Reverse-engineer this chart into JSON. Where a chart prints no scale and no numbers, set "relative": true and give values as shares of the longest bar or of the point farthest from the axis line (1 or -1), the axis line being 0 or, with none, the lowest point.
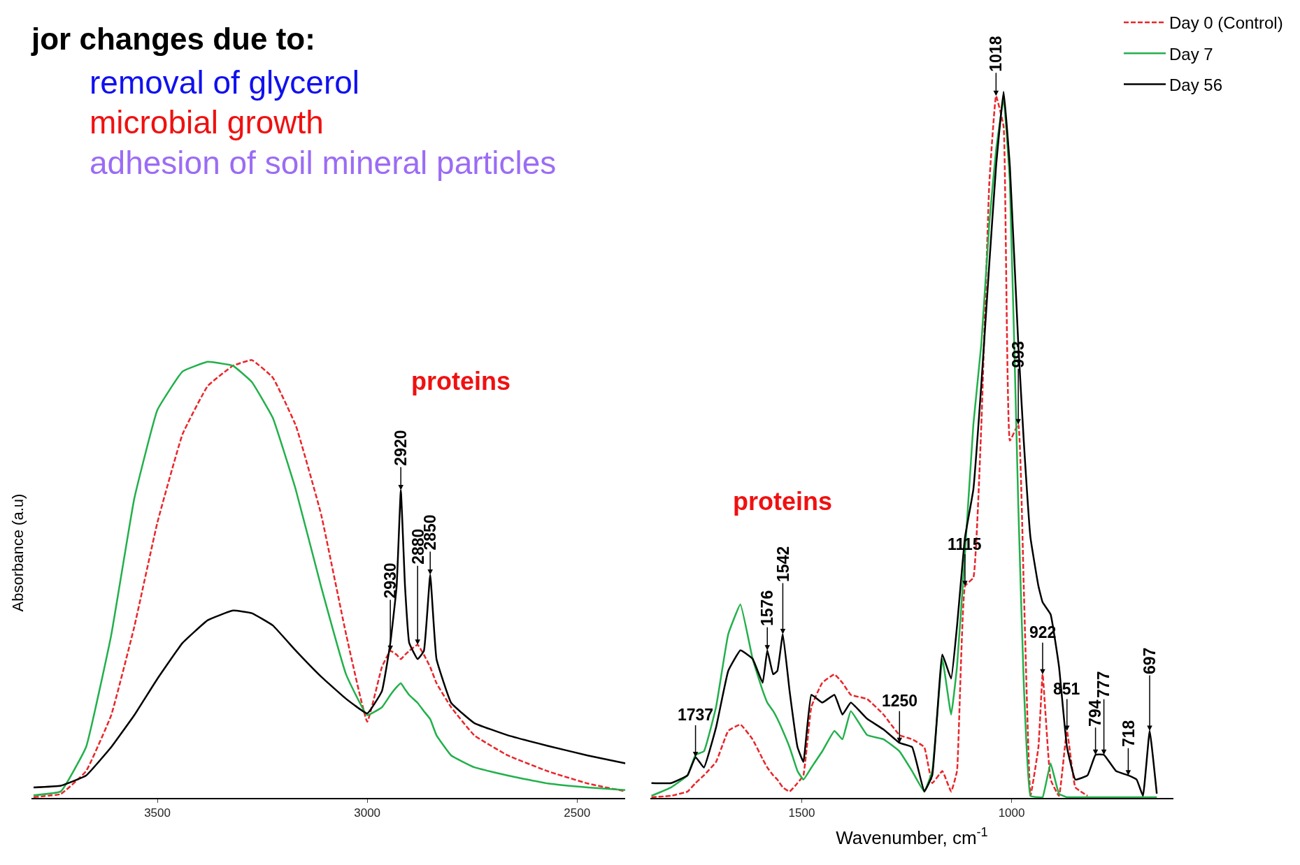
{
  "chart_data": [
    {
      "type": "line",
      "title": "jor changes due to:",
      "ylabel": "Absorbance (a.u)",
      "relative": true,
      "marker": "none",
      "xlim": [
        3800,
        2385
      ],
      "xticks": [
        3500,
        3000,
        2500
      ],
      "x": [
        3795,
        3730,
        3670,
        3610,
        3555,
        3500,
        3440,
        3380,
        3320,
        3275,
        3225,
        3170,
        3110,
        3050,
        3000,
        2965,
        2945,
        2930,
        2920,
        2910,
        2900,
        2880,
        2865,
        2850,
        2835,
        2800,
        2745,
        2665,
        2570,
        2475,
        2385
      ],
      "series": [
        {
          "color": "#e8262a",
          "line_style": "dashed",
          "values": [
            0.002,
            0.009,
            0.061,
            0.189,
            0.391,
            0.629,
            0.831,
            0.941,
            0.987,
            1.0,
            0.96,
            0.85,
            0.648,
            0.372,
            0.174,
            0.299,
            0.336,
            0.327,
            0.317,
            0.327,
            0.336,
            0.35,
            0.327,
            0.299,
            0.262,
            0.207,
            0.143,
            0.097,
            0.061,
            0.033,
            0.015
          ]
        },
        {
          "color": "#22b04b",
          "line_style": "solid",
          "values": [
            0.006,
            0.015,
            0.116,
            0.372,
            0.684,
            0.886,
            0.974,
            0.996,
            0.987,
            0.95,
            0.868,
            0.703,
            0.483,
            0.281,
            0.189,
            0.207,
            0.235,
            0.253,
            0.262,
            0.248,
            0.235,
            0.217,
            0.198,
            0.18,
            0.143,
            0.097,
            0.07,
            0.051,
            0.033,
            0.024,
            0.018
          ]
        },
        {
          "color": "#000000",
          "line_style": "solid",
          "values": [
            0.024,
            0.028,
            0.051,
            0.116,
            0.189,
            0.272,
            0.354,
            0.406,
            0.428,
            0.422,
            0.394,
            0.336,
            0.277,
            0.226,
            0.193,
            0.244,
            0.354,
            0.483,
            0.703,
            0.483,
            0.354,
            0.317,
            0.336,
            0.51,
            0.317,
            0.217,
            0.171,
            0.143,
            0.119,
            0.097,
            0.079
          ]
        }
      ],
      "annotations": [
        "removal of glycerol",
        "microbial growth",
        "adhesion of soil mineral particles",
        "proteins",
        {
          "text": "2920",
          "x": 2920,
          "y": 0.703
        },
        {
          "text": "2850",
          "x": 2850,
          "y": 0.51
        },
        {
          "text": "2930",
          "x": 2945,
          "y": 0.336
        },
        {
          "text": "2880",
          "x": 2880,
          "y": 0.35
        }
      ]
    },
    {
      "type": "line",
      "xlabel": "Wavenumber, cm$^{-1}$",
      "relative": true,
      "legend": "top right",
      "marker": "none",
      "xlim": [
        1860,
        615
      ],
      "xticks": [
        1500,
        1000
      ],
      "x": [
        1858,
        1811,
        1772,
        1753,
        1733,
        1704,
        1675,
        1646,
        1617,
        1593,
        1582,
        1568,
        1558,
        1545,
        1529,
        1510,
        1496,
        1477,
        1451,
        1422,
        1403,
        1383,
        1344,
        1305,
        1267,
        1237,
        1208,
        1189,
        1165,
        1144,
        1130,
        1111,
        1091,
        1072,
        1053,
        1037,
        1019,
        1004,
        984,
        971,
        955,
        936,
        926,
        907,
        887,
        868,
        848,
        819,
        800,
        780,
        751,
        722,
        702,
        687,
        671,
        654
      ],
      "series": [
        {
          "name": "Day 0 (Control)",
          "color": "#e8262a",
          "line_style": "dashed",
          "values": [
            0.001,
            0.003,
            0.009,
            0.021,
            0.032,
            0.051,
            0.095,
            0.104,
            0.083,
            0.055,
            0.043,
            0.032,
            0.026,
            0.015,
            0.009,
            0.021,
            0.032,
            0.129,
            0.163,
            0.175,
            0.163,
            0.146,
            0.14,
            0.118,
            0.089,
            0.083,
            0.072,
            0.021,
            0.038,
            0.009,
            0.038,
            0.3,
            0.312,
            0.529,
            0.871,
            0.994,
            0.951,
            0.506,
            0.529,
            0.3,
            0.003,
            0.072,
            0.175,
            0.026,
            0.003,
            0.095,
            0.015,
            0.003,
            null,
            null,
            null,
            null,
            null,
            null,
            null,
            null
          ]
        },
        {
          "name": "Day 7",
          "color": "#22b04b",
          "line_style": "solid",
          "values": [
            0.003,
            0.015,
            0.032,
            0.061,
            0.066,
            0.129,
            0.232,
            0.274,
            0.197,
            0.152,
            0.135,
            0.123,
            0.112,
            0.095,
            0.072,
            0.038,
            0.026,
            0.043,
            0.066,
            0.095,
            0.083,
            0.123,
            0.089,
            0.083,
            0.066,
            0.038,
            0.009,
            0.038,
            0.197,
            0.118,
            0.186,
            0.346,
            0.529,
            0.643,
            0.814,
            0.917,
            0.99,
            0.871,
            0.414,
            0.163,
            0.003,
            0.001,
            0.001,
            0.049,
            0.006,
            0.001,
            0.001,
            0.001,
            0.001,
            0.001,
            0.001,
            0.001,
            0.001,
            0.001,
            0.001,
            0.001
          ]
        },
        {
          "name": "Day 56",
          "color": "#000000",
          "line_style": "solid",
          "values": [
            0.021,
            0.021,
            0.032,
            0.058,
            0.043,
            0.1,
            0.18,
            0.209,
            0.197,
            0.163,
            0.209,
            0.175,
            0.18,
            0.232,
            0.152,
            0.072,
            0.051,
            0.146,
            0.135,
            0.146,
            0.118,
            0.135,
            0.112,
            0.097,
            0.078,
            0.072,
            0.009,
            0.032,
            0.203,
            0.169,
            0.243,
            0.369,
            0.437,
            0.586,
            0.757,
            0.894,
            1.0,
            0.894,
            0.643,
            0.506,
            0.369,
            0.3,
            0.277,
            0.26,
            0.186,
            0.072,
            0.026,
            0.032,
            0.061,
            0.061,
            0.038,
            0.032,
            0.026,
            0.003,
            0.095,
            0.006
          ]
        }
      ],
      "annotations": [
        {
          "text": "1018",
          "x": 1037,
          "y": 0.994
        },
        {
          "text": "993",
          "x": 984,
          "y": 0.529
        },
        {
          "text": "1115",
          "x": 1111,
          "y": 0.3
        },
        "proteins",
        {
          "text": "1576",
          "x": 1582,
          "y": 0.209
        },
        {
          "text": "1542",
          "x": 1545,
          "y": 0.232
        },
        {
          "text": "1737",
          "x": 1753,
          "y": 0.058
        },
        {
          "text": "1250",
          "x": 1267,
          "y": 0.078
        },
        {
          "text": "922",
          "x": 926,
          "y": 0.175
        },
        {
          "text": "851",
          "x": 868,
          "y": 0.095
        },
        {
          "text": "794",
          "x": 800,
          "y": 0.061
        },
        {
          "text": "777",
          "x": 780,
          "y": 0.061
        },
        {
          "text": "718",
          "x": 722,
          "y": 0.032
        },
        {
          "text": "697",
          "x": 671,
          "y": 0.095
        }
      ]
    }
  ]
}
